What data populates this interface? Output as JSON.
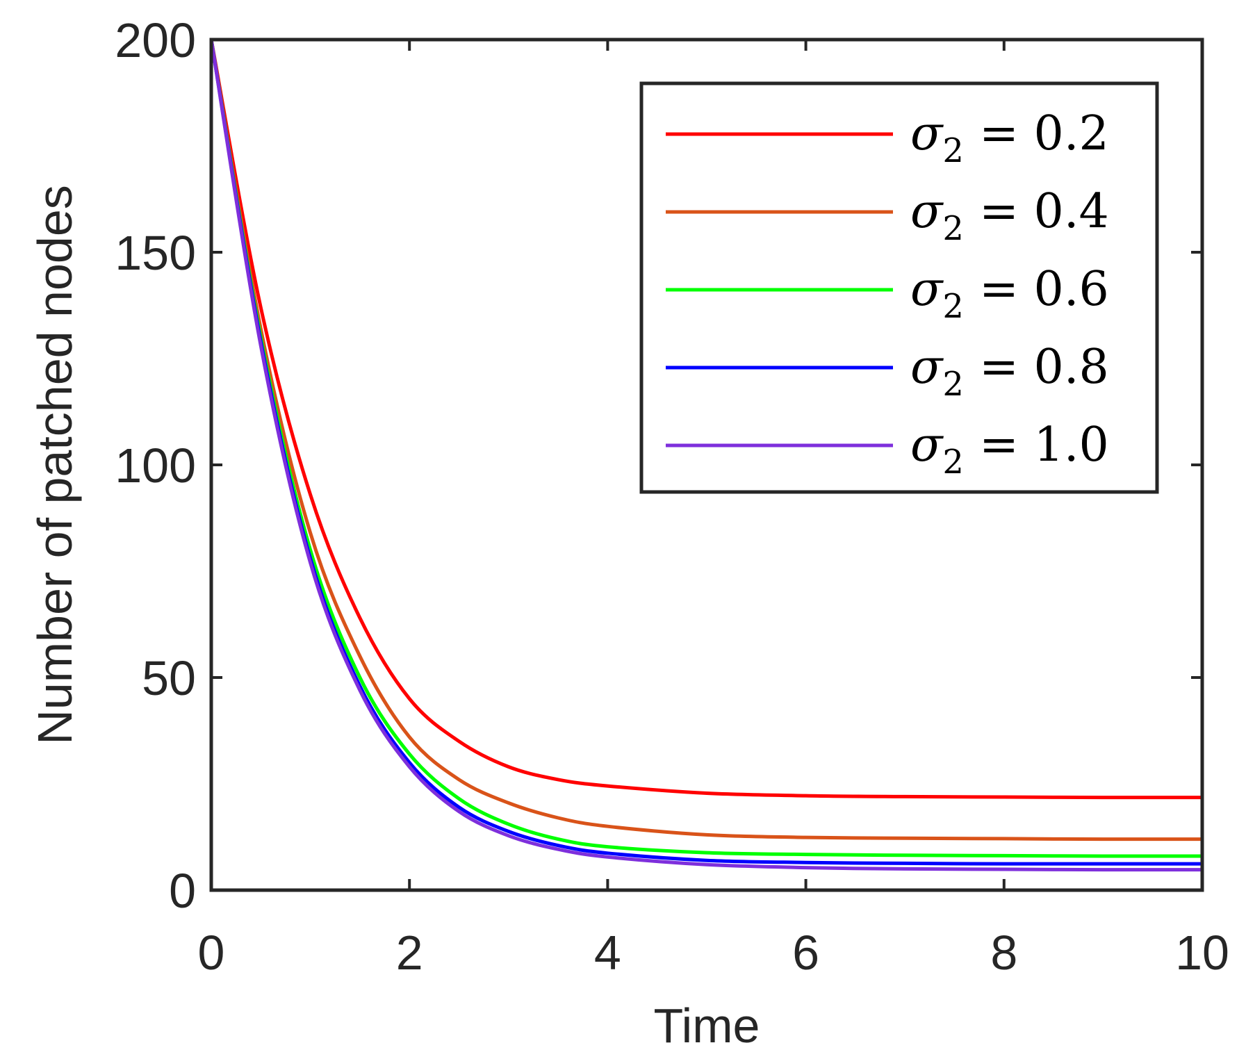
{
  "chart_data": {
    "type": "line",
    "title": "",
    "xlabel": "Time",
    "ylabel": "Number of patched nodes",
    "xlim": [
      0,
      10
    ],
    "ylim": [
      0,
      200
    ],
    "xticks": [
      0,
      2,
      4,
      6,
      8,
      10
    ],
    "yticks": [
      0,
      50,
      100,
      150,
      200
    ],
    "xtick_labels": [
      "0",
      "2",
      "4",
      "6",
      "8",
      "10"
    ],
    "ytick_labels": [
      "0",
      "50",
      "100",
      "150",
      "200"
    ],
    "grid": false,
    "legend_position": "top-right",
    "x": [
      0,
      0.5,
      1,
      1.5,
      2,
      2.5,
      3,
      3.5,
      4,
      5,
      6,
      7,
      8,
      9,
      10
    ],
    "series": [
      {
        "name": "σ2 = 0.2",
        "legend_symbol": "σ",
        "legend_subscript": "2",
        "legend_rest": "= 0.2",
        "color": "#ff0000",
        "values": [
          200,
          137,
          93,
          64,
          45,
          35,
          29,
          26,
          24.5,
          22.8,
          22.2,
          22.0,
          21.9,
          21.8,
          21.8
        ]
      },
      {
        "name": "σ2 = 0.4",
        "legend_symbol": "σ",
        "legend_subscript": "2",
        "legend_rest": "= 0.4",
        "color": "#d95319",
        "values": [
          200,
          132,
          84,
          55,
          36,
          26,
          20.5,
          17,
          15,
          13,
          12.4,
          12.2,
          12.1,
          12.0,
          12.0
        ]
      },
      {
        "name": "σ2 = 0.6",
        "legend_symbol": "σ",
        "legend_subscript": "2",
        "legend_rest": "= 0.6",
        "color": "#00ff00",
        "values": [
          200,
          130,
          80,
          50,
          32,
          21.5,
          15.5,
          12,
          10.2,
          8.8,
          8.4,
          8.2,
          8.1,
          8.0,
          8.0
        ]
      },
      {
        "name": "σ2 = 0.8",
        "legend_symbol": "σ",
        "legend_subscript": "2",
        "legend_rest": "= 0.8",
        "color": "#0000ff",
        "values": [
          200,
          129,
          78,
          48,
          30,
          19.5,
          13.8,
          10.5,
          8.7,
          7.0,
          6.5,
          6.3,
          6.2,
          6.2,
          6.2
        ]
      },
      {
        "name": "σ2 = 1.0",
        "legend_symbol": "σ",
        "legend_subscript": "2",
        "legend_rest": "= 1.0",
        "color": "#7e2fdc",
        "values": [
          200,
          128,
          77,
          47,
          29,
          18.5,
          12.8,
          9.6,
          7.8,
          6.0,
          5.3,
          5.0,
          4.9,
          4.8,
          4.8
        ]
      }
    ]
  }
}
